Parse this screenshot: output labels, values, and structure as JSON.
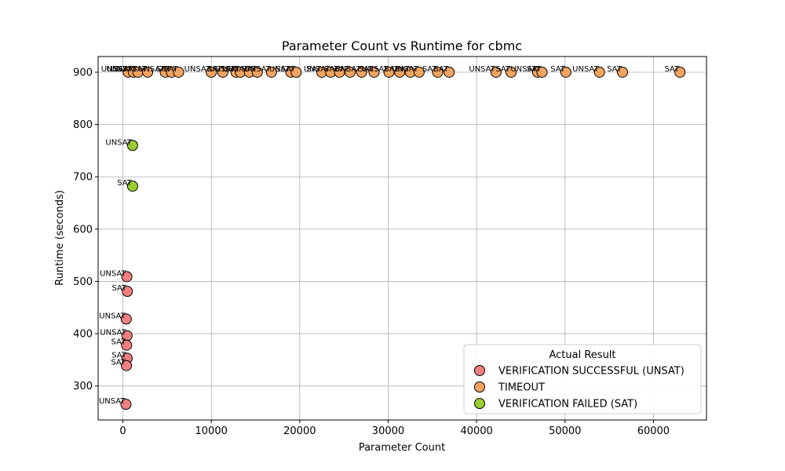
{
  "chart_data": {
    "type": "scatter",
    "title": "Parameter Count vs Runtime for cbmc",
    "xlabel": "Parameter Count",
    "ylabel": "Runtime (seconds)",
    "xlim": [
      -2800,
      66000
    ],
    "ylim": [
      235,
      930
    ],
    "xticks": [
      0,
      10000,
      20000,
      30000,
      40000,
      50000,
      60000
    ],
    "xtick_labels": [
      "0",
      "10000",
      "20000",
      "30000",
      "40000",
      "50000",
      "60000"
    ],
    "yticks": [
      300,
      400,
      500,
      600,
      700,
      800,
      900
    ],
    "ytick_labels": [
      "300",
      "400",
      "500",
      "600",
      "700",
      "800",
      "900"
    ],
    "grid": true,
    "legend": {
      "title": "Actual Result",
      "placement": "lower-right"
    },
    "series": [
      {
        "name": "VERIFICATION SUCCESSFUL (UNSAT)",
        "color": "#f08080",
        "points": [
          {
            "x": 450,
            "y": 509,
            "label": "UNSAT"
          },
          {
            "x": 500,
            "y": 481,
            "label": "SAT"
          },
          {
            "x": 380,
            "y": 428,
            "label": "UNSAT"
          },
          {
            "x": 470,
            "y": 396,
            "label": "UNSAT"
          },
          {
            "x": 420,
            "y": 378,
            "label": "SAT"
          },
          {
            "x": 480,
            "y": 353,
            "label": "SAT"
          },
          {
            "x": 400,
            "y": 339,
            "label": "SAT"
          },
          {
            "x": 350,
            "y": 265,
            "label": "UNSAT"
          }
        ]
      },
      {
        "name": "TIMEOUT",
        "color": "#f4a460",
        "points": [
          {
            "x": 600,
            "y": 900,
            "label": "UNSAT"
          },
          {
            "x": 1200,
            "y": 900,
            "label": "UNSAT"
          },
          {
            "x": 1700,
            "y": 900,
            "label": "UNSAT"
          },
          {
            "x": 2800,
            "y": 900,
            "label": "SAT"
          },
          {
            "x": 4800,
            "y": 900,
            "label": "UNSAT"
          },
          {
            "x": 5500,
            "y": 900,
            "label": "SAT"
          },
          {
            "x": 6300,
            "y": 900,
            "label": "SAT"
          },
          {
            "x": 10000,
            "y": 900,
            "label": "UNSAT"
          },
          {
            "x": 11300,
            "y": 900,
            "label": "SAT"
          },
          {
            "x": 12800,
            "y": 900,
            "label": "UNSAT"
          },
          {
            "x": 13300,
            "y": 900,
            "label": "SAT"
          },
          {
            "x": 14300,
            "y": 900,
            "label": "UNSAT"
          },
          {
            "x": 15200,
            "y": 900,
            "label": "SAT"
          },
          {
            "x": 16800,
            "y": 900,
            "label": "UNSAT"
          },
          {
            "x": 19000,
            "y": 900,
            "label": "SAT"
          },
          {
            "x": 19600,
            "y": 900,
            "label": "UNSAT"
          },
          {
            "x": 22500,
            "y": 900,
            "label": "SAT"
          },
          {
            "x": 23500,
            "y": 900,
            "label": "UNSAT"
          },
          {
            "x": 24500,
            "y": 900,
            "label": "SAT"
          },
          {
            "x": 25700,
            "y": 900,
            "label": "SAT"
          },
          {
            "x": 27000,
            "y": 900,
            "label": "UNSAT"
          },
          {
            "x": 28400,
            "y": 900,
            "label": "SAT"
          },
          {
            "x": 30100,
            "y": 900,
            "label": "UNSAT"
          },
          {
            "x": 31300,
            "y": 900,
            "label": "SAT"
          },
          {
            "x": 32500,
            "y": 900,
            "label": "SAT"
          },
          {
            "x": 33500,
            "y": 900,
            "label": "UNSAT"
          },
          {
            "x": 35600,
            "y": 900,
            "label": "SAT"
          },
          {
            "x": 36900,
            "y": 900,
            "label": "SAT"
          },
          {
            "x": 42200,
            "y": 900,
            "label": "UNSAT"
          },
          {
            "x": 43900,
            "y": 900,
            "label": "SAT"
          },
          {
            "x": 46900,
            "y": 900,
            "label": "UNSAT"
          },
          {
            "x": 47400,
            "y": 900,
            "label": "SAT"
          },
          {
            "x": 50100,
            "y": 900,
            "label": "SAT"
          },
          {
            "x": 53900,
            "y": 900,
            "label": "UNSAT"
          },
          {
            "x": 56500,
            "y": 900,
            "label": "SAT"
          },
          {
            "x": 63000,
            "y": 900,
            "label": "SAT"
          }
        ]
      },
      {
        "name": "VERIFICATION FAILED (SAT)",
        "color": "#9acd32",
        "points": [
          {
            "x": 1100,
            "y": 760,
            "label": "UNSAT"
          },
          {
            "x": 1100,
            "y": 682,
            "label": "SAT"
          }
        ]
      }
    ]
  }
}
